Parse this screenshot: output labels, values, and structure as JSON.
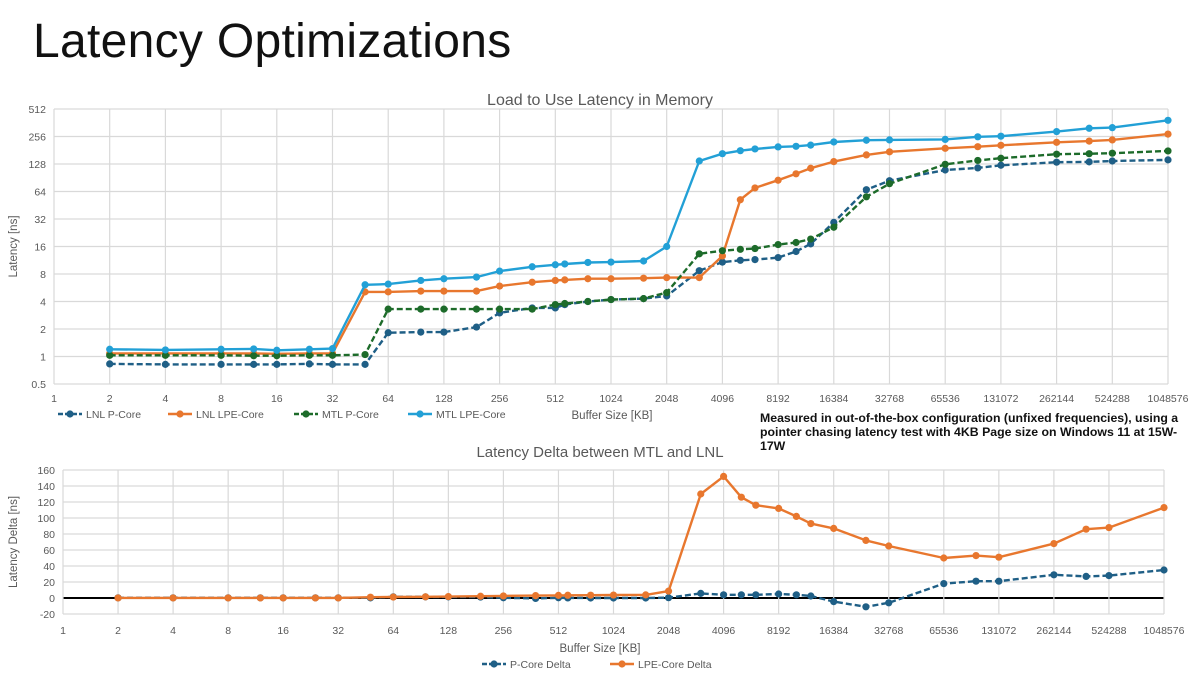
{
  "page": {
    "title": "Latency Optimizations"
  },
  "note": {
    "line1": "Measured in out-of-the-box configuration (unfixed frequencies), using a",
    "line2": "pointer chasing latency test with 4KB Page size on Windows 11 at 15W-17W"
  },
  "chart_data": [
    {
      "type": "line",
      "title": "Load to Use Latency in Memory",
      "xlabel": "Buffer Size [KB]",
      "ylabel": "Latency [ns]",
      "xscale": "log2",
      "yscale": "log2",
      "xlim": [
        1,
        1048576
      ],
      "ylim": [
        0.5,
        512
      ],
      "xticks": [
        "1",
        "2",
        "4",
        "8",
        "16",
        "32",
        "64",
        "128",
        "256",
        "512",
        "1024",
        "2048",
        "4096",
        "8192",
        "16384",
        "32768",
        "65536",
        "131072",
        "262144",
        "524288",
        "1048576"
      ],
      "yticks": [
        "0.5",
        "1",
        "2",
        "4",
        "8",
        "16",
        "32",
        "64",
        "128",
        "256",
        "512"
      ],
      "grid": true,
      "legend": "bottom-left",
      "x": [
        2,
        4,
        8,
        12,
        16,
        24,
        32,
        48,
        64,
        96,
        128,
        192,
        256,
        384,
        512,
        576,
        768,
        1024,
        1536,
        2048,
        3072,
        4096,
        5120,
        6144,
        8192,
        10240,
        12288,
        16384,
        24576,
        32768,
        65536,
        98304,
        131072,
        262144,
        393216,
        524288,
        1048576
      ],
      "series": [
        {
          "name": "LNL P-Core",
          "color": "#1f5f86",
          "dashed": true,
          "values": [
            0.83,
            0.82,
            0.82,
            0.82,
            0.82,
            0.83,
            0.82,
            0.82,
            1.82,
            1.85,
            1.85,
            2.1,
            3.0,
            3.4,
            3.4,
            3.7,
            4.0,
            4.2,
            4.3,
            4.6,
            8.7,
            10.8,
            11.3,
            11.5,
            12.1,
            14.1,
            17.1,
            29.4,
            67,
            84,
            110,
            116,
            124,
            134,
            135,
            138,
            142
          ]
        },
        {
          "name": "LNL LPE-Core",
          "color": "#e8772e",
          "dashed": false,
          "values": [
            1.08,
            1.08,
            1.08,
            1.08,
            1.07,
            1.08,
            1.08,
            5.1,
            5.1,
            5.2,
            5.2,
            5.2,
            5.9,
            6.5,
            6.8,
            6.9,
            7.1,
            7.1,
            7.2,
            7.3,
            7.3,
            12.6,
            52,
            70,
            85,
            100,
            115,
            136,
            161,
            174,
            190,
            198,
            205,
            221,
            228,
            235,
            272
          ]
        },
        {
          "name": "MTL P-Core",
          "color": "#1d6b2a",
          "dashed": true,
          "values": [
            1.03,
            1.03,
            1.03,
            1.02,
            1.02,
            1.03,
            1.03,
            1.05,
            3.3,
            3.3,
            3.3,
            3.3,
            3.3,
            3.3,
            3.7,
            3.8,
            4.0,
            4.2,
            4.3,
            5.0,
            13.3,
            14.4,
            14.9,
            15.2,
            16.8,
            17.7,
            19.3,
            26,
            56,
            78,
            127,
            140,
            148,
            164,
            166,
            168,
            178
          ]
        },
        {
          "name": "MTL LPE-Core",
          "color": "#22a0d6",
          "dashed": false,
          "values": [
            1.2,
            1.18,
            1.2,
            1.21,
            1.17,
            1.2,
            1.22,
            6.1,
            6.2,
            6.8,
            7.1,
            7.4,
            8.6,
            9.6,
            10.1,
            10.3,
            10.7,
            10.8,
            11.1,
            16,
            138,
            166,
            179,
            187,
            197,
            200,
            206,
            223,
            233,
            235,
            238,
            254,
            258,
            290,
            315,
            320,
            385
          ]
        }
      ]
    },
    {
      "type": "line",
      "title": "Latency Delta between MTL and LNL",
      "xlabel": "Buffer Size [KB]",
      "ylabel": "Latency Delta [ns]",
      "xscale": "log2",
      "xlim": [
        1,
        1048576
      ],
      "ylim": [
        -20,
        160
      ],
      "xticks": [
        "1",
        "2",
        "4",
        "8",
        "16",
        "32",
        "64",
        "128",
        "256",
        "512",
        "1024",
        "2048",
        "4096",
        "8192",
        "16384",
        "32768",
        "65536",
        "131072",
        "262144",
        "524288",
        "1048576"
      ],
      "yticks": [
        "-20",
        "0",
        "20",
        "40",
        "60",
        "80",
        "100",
        "120",
        "140",
        "160"
      ],
      "grid": true,
      "legend": "bottom-center",
      "x": [
        2,
        4,
        8,
        12,
        16,
        24,
        32,
        48,
        64,
        96,
        128,
        192,
        256,
        384,
        512,
        576,
        768,
        1024,
        1536,
        2048,
        3072,
        4096,
        5120,
        6144,
        8192,
        10240,
        12288,
        16384,
        24576,
        32768,
        65536,
        98304,
        131072,
        262144,
        393216,
        524288,
        1048576
      ],
      "series": [
        {
          "name": "P-Core Delta",
          "color": "#1f5f86",
          "dashed": true,
          "values": [
            0.2,
            0.2,
            0.2,
            0.2,
            0.2,
            0.2,
            0.2,
            0.2,
            1.5,
            1.4,
            1.4,
            1.2,
            0.3,
            -0.5,
            0.3,
            0.1,
            0,
            0,
            0,
            0.4,
            5.8,
            4,
            4,
            4,
            5,
            4,
            2.5,
            -4.5,
            -11,
            -6,
            18,
            21,
            21,
            29,
            27,
            28,
            35
          ]
        },
        {
          "name": "LPE-Core Delta",
          "color": "#e8772e",
          "dashed": false,
          "values": [
            0.1,
            0.1,
            0.1,
            0.1,
            0.1,
            0.1,
            0.1,
            1,
            1.2,
            1.5,
            1.8,
            2.2,
            2.6,
            3.0,
            3.3,
            3.4,
            3.5,
            3.7,
            3.9,
            8.6,
            130,
            152,
            126,
            116,
            112,
            102,
            93,
            87,
            72,
            65,
            50,
            53,
            51,
            68,
            86,
            88,
            113
          ]
        }
      ]
    }
  ]
}
